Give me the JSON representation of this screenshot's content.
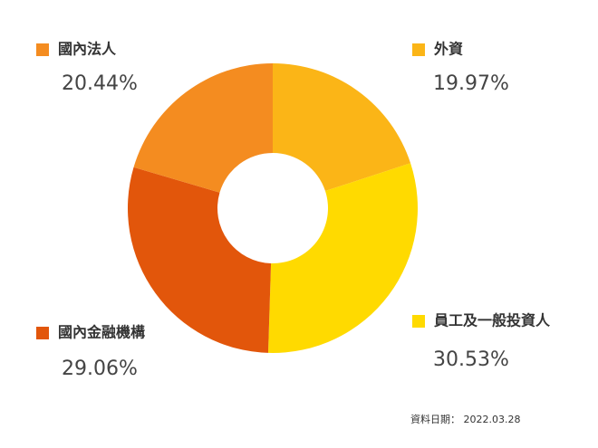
{
  "chart_data": {
    "type": "donut",
    "categories": [
      "外資",
      "員工及一般投資人",
      "國內金融機構",
      "國內法人"
    ],
    "values": [
      19.97,
      30.53,
      29.06,
      20.44
    ],
    "value_labels": [
      "19.97%",
      "30.53%",
      "29.06%",
      "20.44%"
    ],
    "colors": [
      "#fbb517",
      "#ffda00",
      "#e2560b",
      "#f48c20"
    ],
    "note": "資料日期： 2022.03.28"
  }
}
